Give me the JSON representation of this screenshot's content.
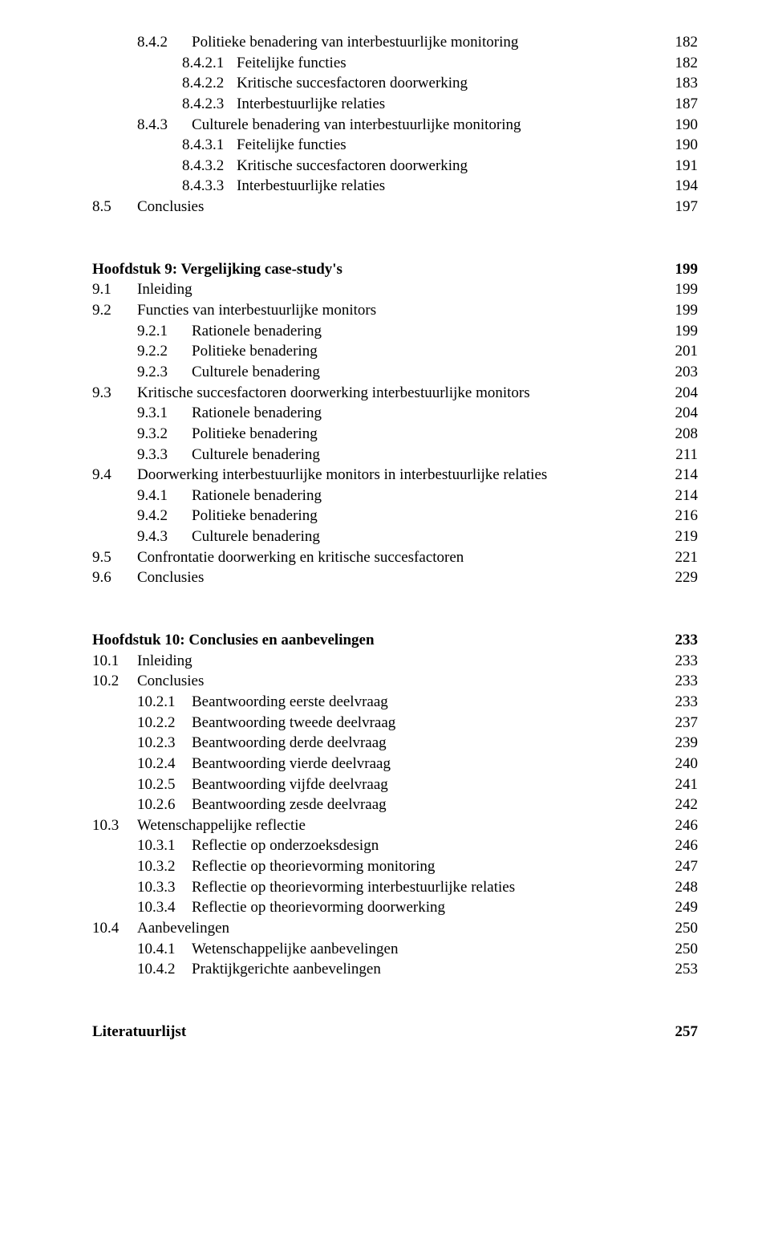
{
  "section_8_4_rest": [
    {
      "indent": 1,
      "num": "8.4.2",
      "text": "Politieke benadering van interbestuurlijke monitoring",
      "page": "182"
    },
    {
      "indent": 2,
      "num": "8.4.2.1",
      "text": "Feitelijke functies",
      "page": "182"
    },
    {
      "indent": 2,
      "num": "8.4.2.2",
      "text": "Kritische succesfactoren doorwerking",
      "page": "183"
    },
    {
      "indent": 2,
      "num": "8.4.2.3",
      "text": "Interbestuurlijke relaties",
      "page": "187"
    },
    {
      "indent": 1,
      "num": "8.4.3",
      "text": "Culturele benadering van interbestuurlijke monitoring",
      "page": "190"
    },
    {
      "indent": 2,
      "num": "8.4.3.1",
      "text": "Feitelijke functies",
      "page": "190"
    },
    {
      "indent": 2,
      "num": "8.4.3.2",
      "text": "Kritische succesfactoren doorwerking",
      "page": "191"
    },
    {
      "indent": 2,
      "num": "8.4.3.3",
      "text": "Interbestuurlijke relaties",
      "page": "194"
    },
    {
      "indent": 0,
      "num": "8.5",
      "text": "Conclusies",
      "page": "197"
    }
  ],
  "chapter9": {
    "title": "Hoofdstuk 9: Vergelijking case-study's",
    "page": "199",
    "entries": [
      {
        "indent": 0,
        "num": "9.1",
        "text": "Inleiding",
        "page": "199"
      },
      {
        "indent": 0,
        "num": "9.2",
        "text": "Functies van interbestuurlijke monitors",
        "page": "199"
      },
      {
        "indent": 1,
        "num": "9.2.1",
        "text": "Rationele benadering",
        "page": "199"
      },
      {
        "indent": 1,
        "num": "9.2.2",
        "text": "Politieke benadering",
        "page": "201"
      },
      {
        "indent": 1,
        "num": "9.2.3",
        "text": "Culturele benadering",
        "page": "203"
      },
      {
        "indent": 0,
        "num": "9.3",
        "text": "Kritische succesfactoren doorwerking interbestuurlijke monitors",
        "page": "204"
      },
      {
        "indent": 1,
        "num": "9.3.1",
        "text": "Rationele benadering",
        "page": "204"
      },
      {
        "indent": 1,
        "num": "9.3.2",
        "text": "Politieke benadering",
        "page": "208"
      },
      {
        "indent": 1,
        "num": "9.3.3",
        "text": "Culturele benadering",
        "page": "211"
      },
      {
        "indent": 0,
        "num": "9.4",
        "text": "Doorwerking interbestuurlijke monitors in interbestuurlijke relaties",
        "page": "214"
      },
      {
        "indent": 1,
        "num": "9.4.1",
        "text": "Rationele benadering",
        "page": "214"
      },
      {
        "indent": 1,
        "num": "9.4.2",
        "text": "Politieke benadering",
        "page": "216"
      },
      {
        "indent": 1,
        "num": "9.4.3",
        "text": "Culturele benadering",
        "page": "219"
      },
      {
        "indent": 0,
        "num": "9.5",
        "text": "Confrontatie doorwerking en kritische succesfactoren",
        "page": "221"
      },
      {
        "indent": 0,
        "num": "9.6",
        "text": "Conclusies",
        "page": "229"
      }
    ]
  },
  "chapter10": {
    "title": "Hoofdstuk 10: Conclusies en aanbevelingen",
    "page": "233",
    "entries": [
      {
        "indent": 0,
        "num": "10.1",
        "text": "Inleiding",
        "page": "233"
      },
      {
        "indent": 0,
        "num": "10.2",
        "text": "Conclusies",
        "page": "233"
      },
      {
        "indent": 1,
        "num": "10.2.1",
        "text": "Beantwoording eerste deelvraag",
        "page": "233"
      },
      {
        "indent": 1,
        "num": "10.2.2",
        "text": "Beantwoording tweede deelvraag",
        "page": "237"
      },
      {
        "indent": 1,
        "num": "10.2.3",
        "text": "Beantwoording derde deelvraag",
        "page": "239"
      },
      {
        "indent": 1,
        "num": "10.2.4",
        "text": "Beantwoording vierde deelvraag",
        "page": "240"
      },
      {
        "indent": 1,
        "num": "10.2.5",
        "text": "Beantwoording vijfde deelvraag",
        "page": "241"
      },
      {
        "indent": 1,
        "num": "10.2.6",
        "text": "Beantwoording zesde deelvraag",
        "page": "242"
      },
      {
        "indent": 0,
        "num": "10.3",
        "text": "Wetenschappelijke reflectie",
        "page": "246"
      },
      {
        "indent": 1,
        "num": "10.3.1",
        "text": "Reflectie op onderzoeksdesign",
        "page": "246"
      },
      {
        "indent": 1,
        "num": "10.3.2",
        "text": "Reflectie op theorievorming monitoring",
        "page": "247"
      },
      {
        "indent": 1,
        "num": "10.3.3",
        "text": "Reflectie op theorievorming interbestuurlijke relaties",
        "page": "248"
      },
      {
        "indent": 1,
        "num": "10.3.4",
        "text": "Reflectie op theorievorming doorwerking",
        "page": "249"
      },
      {
        "indent": 0,
        "num": "10.4",
        "text": "Aanbevelingen",
        "page": "250"
      },
      {
        "indent": 1,
        "num": "10.4.1",
        "text": "Wetenschappelijke aanbevelingen",
        "page": "250"
      },
      {
        "indent": 1,
        "num": "10.4.2",
        "text": "Praktijkgerichte aanbevelingen",
        "page": "253"
      }
    ]
  },
  "literature": {
    "title": "Literatuurlijst",
    "page": "257"
  }
}
